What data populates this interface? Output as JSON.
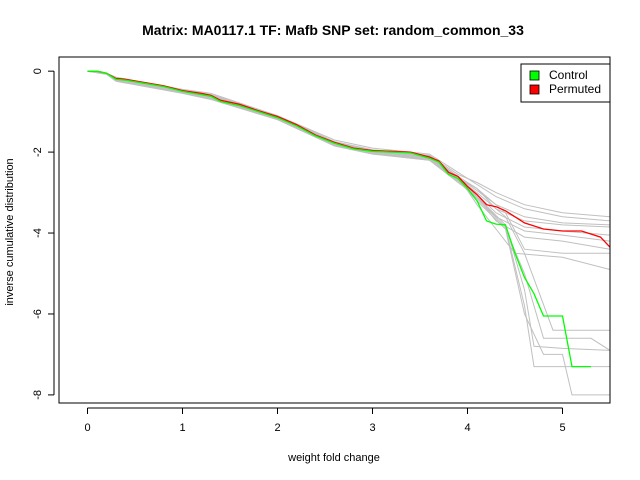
{
  "chart_data": {
    "type": "line",
    "title": "Matrix: MA0117.1 TF: Mafb SNP set: random_common_33",
    "xlabel": "weight fold change",
    "ylabel": "inverse cumulative distribution",
    "xlim": [
      -0.3,
      5.5
    ],
    "ylim": [
      -8.2,
      0.35
    ],
    "x_ticks": [
      0,
      1,
      2,
      3,
      4,
      5
    ],
    "y_ticks": [
      0,
      -2,
      -4,
      -6,
      -8
    ],
    "legend": {
      "position": "top-right",
      "entries": [
        {
          "label": "Control",
          "color": "#00ff00"
        },
        {
          "label": "Permuted",
          "color": "#ff0000"
        }
      ]
    },
    "grid": false,
    "series": [
      {
        "name": "Control",
        "color": "#00ff00",
        "points": [
          [
            0,
            0
          ],
          [
            0.1,
            0
          ],
          [
            0.2,
            -0.05
          ],
          [
            0.3,
            -0.2
          ],
          [
            0.4,
            -0.22
          ],
          [
            0.6,
            -0.3
          ],
          [
            0.8,
            -0.38
          ],
          [
            1.0,
            -0.5
          ],
          [
            1.2,
            -0.58
          ],
          [
            1.3,
            -0.62
          ],
          [
            1.4,
            -0.75
          ],
          [
            1.6,
            -0.85
          ],
          [
            1.8,
            -1.0
          ],
          [
            2.0,
            -1.15
          ],
          [
            2.2,
            -1.35
          ],
          [
            2.4,
            -1.6
          ],
          [
            2.6,
            -1.78
          ],
          [
            2.8,
            -1.92
          ],
          [
            3.0,
            -1.98
          ],
          [
            3.2,
            -2.0
          ],
          [
            3.4,
            -2.02
          ],
          [
            3.6,
            -2.15
          ],
          [
            3.7,
            -2.25
          ],
          [
            3.8,
            -2.55
          ],
          [
            3.9,
            -2.65
          ],
          [
            4.0,
            -2.9
          ],
          [
            4.1,
            -3.2
          ],
          [
            4.2,
            -3.7
          ],
          [
            4.3,
            -3.78
          ],
          [
            4.4,
            -3.8
          ],
          [
            4.5,
            -4.5
          ],
          [
            4.6,
            -5.1
          ],
          [
            4.7,
            -5.5
          ],
          [
            4.8,
            -6.05
          ],
          [
            5.0,
            -6.05
          ],
          [
            5.1,
            -7.3
          ],
          [
            5.3,
            -7.3
          ]
        ]
      },
      {
        "name": "Permuted",
        "color": "#ff0000",
        "points": [
          [
            0,
            0
          ],
          [
            0.1,
            0
          ],
          [
            0.2,
            -0.05
          ],
          [
            0.3,
            -0.18
          ],
          [
            0.4,
            -0.2
          ],
          [
            0.6,
            -0.28
          ],
          [
            0.8,
            -0.36
          ],
          [
            1.0,
            -0.48
          ],
          [
            1.2,
            -0.55
          ],
          [
            1.3,
            -0.6
          ],
          [
            1.4,
            -0.72
          ],
          [
            1.6,
            -0.82
          ],
          [
            1.8,
            -0.98
          ],
          [
            2.0,
            -1.12
          ],
          [
            2.2,
            -1.32
          ],
          [
            2.4,
            -1.58
          ],
          [
            2.6,
            -1.76
          ],
          [
            2.8,
            -1.9
          ],
          [
            3.0,
            -1.96
          ],
          [
            3.2,
            -1.98
          ],
          [
            3.4,
            -2.0
          ],
          [
            3.6,
            -2.12
          ],
          [
            3.7,
            -2.22
          ],
          [
            3.8,
            -2.5
          ],
          [
            3.9,
            -2.6
          ],
          [
            4.0,
            -2.85
          ],
          [
            4.1,
            -3.05
          ],
          [
            4.2,
            -3.3
          ],
          [
            4.3,
            -3.35
          ],
          [
            4.4,
            -3.45
          ],
          [
            4.5,
            -3.6
          ],
          [
            4.6,
            -3.75
          ],
          [
            4.8,
            -3.9
          ],
          [
            5.0,
            -3.95
          ],
          [
            5.2,
            -3.95
          ],
          [
            5.4,
            -4.1
          ],
          [
            5.5,
            -4.35
          ]
        ]
      }
    ],
    "background_curves_color": "#c0c0c0",
    "background_curves": [
      [
        [
          0,
          0
        ],
        [
          0.2,
          -0.05
        ],
        [
          0.3,
          -0.2
        ],
        [
          1.0,
          -0.5
        ],
        [
          1.3,
          -0.65
        ],
        [
          2.0,
          -1.15
        ],
        [
          2.6,
          -1.8
        ],
        [
          3.0,
          -2.0
        ],
        [
          3.6,
          -2.15
        ],
        [
          3.9,
          -2.65
        ],
        [
          4.1,
          -2.9
        ],
        [
          4.3,
          -3.4
        ],
        [
          4.6,
          -3.7
        ],
        [
          5.0,
          -3.8
        ],
        [
          5.5,
          -3.85
        ]
      ],
      [
        [
          0,
          0
        ],
        [
          0.2,
          -0.05
        ],
        [
          0.3,
          -0.15
        ],
        [
          1.0,
          -0.45
        ],
        [
          1.3,
          -0.55
        ],
        [
          2.0,
          -1.1
        ],
        [
          2.6,
          -1.7
        ],
        [
          3.0,
          -1.9
        ],
        [
          3.6,
          -2.05
        ],
        [
          3.9,
          -2.5
        ],
        [
          4.1,
          -2.8
        ],
        [
          4.3,
          -3.1
        ],
        [
          4.6,
          -3.4
        ],
        [
          5.0,
          -3.6
        ],
        [
          5.5,
          -3.7
        ]
      ],
      [
        [
          0,
          0
        ],
        [
          0.2,
          -0.08
        ],
        [
          0.3,
          -0.25
        ],
        [
          1.0,
          -0.55
        ],
        [
          1.3,
          -0.7
        ],
        [
          2.0,
          -1.2
        ],
        [
          2.6,
          -1.85
        ],
        [
          3.0,
          -2.05
        ],
        [
          3.6,
          -2.2
        ],
        [
          3.9,
          -2.75
        ],
        [
          4.1,
          -3.1
        ],
        [
          4.3,
          -3.6
        ],
        [
          4.6,
          -3.95
        ],
        [
          5.0,
          -4.05
        ],
        [
          5.5,
          -4.2
        ]
      ],
      [
        [
          0,
          0
        ],
        [
          0.2,
          -0.05
        ],
        [
          0.3,
          -0.2
        ],
        [
          1.0,
          -0.52
        ],
        [
          1.3,
          -0.6
        ],
        [
          2.0,
          -1.14
        ],
        [
          2.6,
          -1.78
        ],
        [
          3.0,
          -1.95
        ],
        [
          3.6,
          -2.1
        ],
        [
          3.9,
          -2.6
        ],
        [
          4.1,
          -3.3
        ],
        [
          4.3,
          -3.9
        ],
        [
          4.5,
          -4.5
        ],
        [
          5.0,
          -4.6
        ],
        [
          5.5,
          -4.9
        ]
      ],
      [
        [
          0,
          0
        ],
        [
          0.2,
          -0.06
        ],
        [
          0.3,
          -0.22
        ],
        [
          1.0,
          -0.5
        ],
        [
          1.3,
          -0.66
        ],
        [
          2.0,
          -1.18
        ],
        [
          2.6,
          -1.82
        ],
        [
          3.0,
          -2.02
        ],
        [
          3.6,
          -2.18
        ],
        [
          3.9,
          -2.7
        ],
        [
          4.1,
          -3.2
        ],
        [
          4.4,
          -3.9
        ],
        [
          4.6,
          -5.0
        ],
        [
          4.8,
          -6.6
        ],
        [
          5.0,
          -6.6
        ],
        [
          5.3,
          -6.6
        ],
        [
          5.5,
          -6.9
        ]
      ],
      [
        [
          0,
          0
        ],
        [
          0.2,
          -0.05
        ],
        [
          0.3,
          -0.19
        ],
        [
          1.0,
          -0.47
        ],
        [
          1.3,
          -0.62
        ],
        [
          2.0,
          -1.12
        ],
        [
          2.6,
          -1.76
        ],
        [
          3.0,
          -1.97
        ],
        [
          3.6,
          -2.12
        ],
        [
          3.9,
          -2.62
        ],
        [
          4.1,
          -3.1
        ],
        [
          4.4,
          -3.8
        ],
        [
          4.6,
          -5.4
        ],
        [
          4.7,
          -6.8
        ],
        [
          5.0,
          -6.85
        ],
        [
          5.5,
          -6.9
        ]
      ],
      [
        [
          0,
          0
        ],
        [
          0.2,
          -0.05
        ],
        [
          0.3,
          -0.21
        ],
        [
          1.0,
          -0.51
        ],
        [
          1.3,
          -0.64
        ],
        [
          2.0,
          -1.16
        ],
        [
          2.6,
          -1.8
        ],
        [
          3.0,
          -1.99
        ],
        [
          3.6,
          -2.16
        ],
        [
          3.9,
          -2.68
        ],
        [
          4.1,
          -3.15
        ],
        [
          4.4,
          -3.85
        ],
        [
          4.6,
          -5.8
        ],
        [
          4.7,
          -7.3
        ],
        [
          5.0,
          -7.3
        ],
        [
          5.5,
          -7.3
        ]
      ],
      [
        [
          0,
          0
        ],
        [
          0.2,
          -0.05
        ],
        [
          0.3,
          -0.2
        ],
        [
          1.0,
          -0.5
        ],
        [
          1.3,
          -0.63
        ],
        [
          2.0,
          -1.15
        ],
        [
          2.6,
          -1.79
        ],
        [
          3.0,
          -1.98
        ],
        [
          3.6,
          -2.14
        ],
        [
          3.9,
          -2.66
        ],
        [
          4.1,
          -3.2
        ],
        [
          4.4,
          -3.9
        ],
        [
          4.6,
          -6.0
        ],
        [
          4.8,
          -7.0
        ],
        [
          5.0,
          -7.0
        ],
        [
          5.1,
          -8.0
        ],
        [
          5.5,
          -8.0
        ]
      ],
      [
        [
          0,
          0
        ],
        [
          0.2,
          -0.05
        ],
        [
          0.3,
          -0.2
        ],
        [
          1.0,
          -0.5
        ],
        [
          1.3,
          -0.63
        ],
        [
          2.0,
          -1.15
        ],
        [
          2.6,
          -1.79
        ],
        [
          3.0,
          -1.98
        ],
        [
          3.6,
          -2.14
        ],
        [
          3.9,
          -2.66
        ],
        [
          4.1,
          -3.0
        ],
        [
          4.4,
          -3.6
        ],
        [
          4.6,
          -4.5
        ],
        [
          4.9,
          -6.4
        ],
        [
          5.2,
          -6.4
        ],
        [
          5.5,
          -6.4
        ]
      ],
      [
        [
          0,
          0
        ],
        [
          0.2,
          -0.05
        ],
        [
          0.3,
          -0.2
        ],
        [
          1.0,
          -0.5
        ],
        [
          1.3,
          -0.63
        ],
        [
          2.0,
          -1.15
        ],
        [
          2.6,
          -1.79
        ],
        [
          3.0,
          -1.98
        ],
        [
          3.6,
          -2.14
        ],
        [
          3.9,
          -2.6
        ],
        [
          4.1,
          -2.9
        ],
        [
          4.4,
          -3.5
        ],
        [
          4.6,
          -4.4
        ],
        [
          5.0,
          -4.5
        ],
        [
          5.5,
          -4.5
        ]
      ],
      [
        [
          0,
          0
        ],
        [
          0.2,
          -0.05
        ],
        [
          0.3,
          -0.18
        ],
        [
          1.0,
          -0.46
        ],
        [
          1.3,
          -0.58
        ],
        [
          2.0,
          -1.1
        ],
        [
          2.6,
          -1.74
        ],
        [
          3.0,
          -1.94
        ],
        [
          3.6,
          -2.08
        ],
        [
          3.9,
          -2.55
        ],
        [
          4.1,
          -2.75
        ],
        [
          4.3,
          -3.0
        ],
        [
          4.6,
          -3.3
        ],
        [
          5.0,
          -3.5
        ],
        [
          5.5,
          -3.6
        ]
      ],
      [
        [
          0,
          0
        ],
        [
          0.2,
          -0.07
        ],
        [
          0.3,
          -0.24
        ],
        [
          1.0,
          -0.54
        ],
        [
          1.3,
          -0.68
        ],
        [
          2.0,
          -1.2
        ],
        [
          2.6,
          -1.84
        ],
        [
          3.0,
          -2.04
        ],
        [
          3.6,
          -2.2
        ],
        [
          3.9,
          -2.72
        ],
        [
          4.1,
          -3.05
        ],
        [
          4.3,
          -3.5
        ],
        [
          4.6,
          -3.85
        ],
        [
          5.0,
          -3.95
        ],
        [
          5.5,
          -4.05
        ]
      ],
      [
        [
          0,
          0
        ],
        [
          0.2,
          -0.05
        ],
        [
          0.3,
          -0.2
        ],
        [
          1.0,
          -0.49
        ],
        [
          1.3,
          -0.61
        ],
        [
          2.0,
          -1.13
        ],
        [
          2.6,
          -1.77
        ],
        [
          3.0,
          -1.97
        ],
        [
          3.6,
          -2.13
        ],
        [
          3.9,
          -2.64
        ],
        [
          4.1,
          -2.95
        ],
        [
          4.3,
          -3.3
        ],
        [
          4.6,
          -3.6
        ],
        [
          5.0,
          -3.75
        ],
        [
          5.5,
          -3.8
        ]
      ],
      [
        [
          0,
          0
        ],
        [
          0.2,
          -0.06
        ],
        [
          0.3,
          -0.23
        ],
        [
          1.0,
          -0.53
        ],
        [
          1.3,
          -0.67
        ],
        [
          2.0,
          -1.19
        ],
        [
          2.6,
          -1.83
        ],
        [
          3.0,
          -2.03
        ],
        [
          3.6,
          -2.19
        ],
        [
          3.9,
          -2.7
        ],
        [
          4.1,
          -3.1
        ],
        [
          4.3,
          -3.7
        ],
        [
          4.6,
          -4.1
        ],
        [
          5.0,
          -4.2
        ],
        [
          5.5,
          -4.4
        ]
      ]
    ]
  }
}
